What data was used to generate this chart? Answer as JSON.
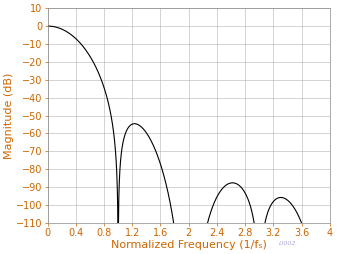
{
  "title": "",
  "xlabel": "Normalized Frequency (1/fₛ)",
  "ylabel": "Magnitude (dB)",
  "xlim": [
    0,
    4
  ],
  "ylim": [
    -110,
    10
  ],
  "xticks": [
    0,
    0.4,
    0.8,
    1.2,
    1.6,
    2.0,
    2.4,
    2.8,
    3.2,
    3.6,
    4.0
  ],
  "yticks": [
    10,
    0,
    -10,
    -20,
    -30,
    -40,
    -50,
    -60,
    -70,
    -80,
    -90,
    -100,
    -110
  ],
  "xlabel_color": "#CC6600",
  "ylabel_color": "#CC6600",
  "tick_color": "#CC6600",
  "line_color": "#000000",
  "grid_color": "#AAAAAA",
  "background_color": "#FFFFFF",
  "plot_bg_color": "#FFFFFF",
  "watermark": "LI002",
  "font_size": 7,
  "label_font_size": 8
}
